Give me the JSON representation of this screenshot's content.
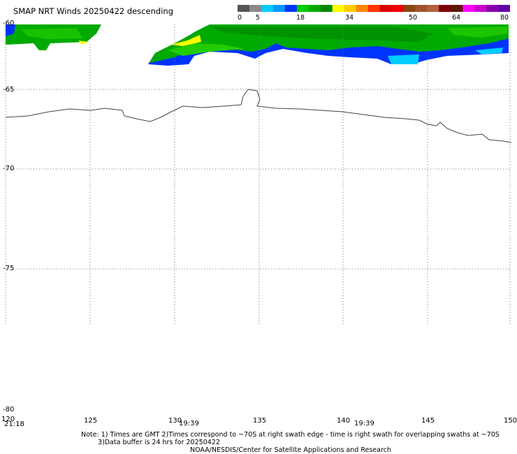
{
  "title": "SMAP NRT Winds  20250422 descending",
  "colorbar": {
    "labels": [
      "0",
      "5",
      "18",
      "34",
      "50",
      "64",
      "80"
    ],
    "segments": [
      "#555555",
      "#8a8a8a",
      "#00ccff",
      "#0099ff",
      "#0033ff",
      "#00cc00",
      "#00aa00",
      "#008800",
      "#ffff00",
      "#ffcc00",
      "#ff8800",
      "#ff3300",
      "#dd0000",
      "#ee0000",
      "#8b4513",
      "#a0522d",
      "#b06040",
      "#800000",
      "#5a1a00",
      "#ff00ff",
      "#cc00cc",
      "#8800aa",
      "#6600aa"
    ]
  },
  "axes": {
    "lat_labels": [
      "-60",
      "-65",
      "-70",
      "-75",
      "-80"
    ],
    "lon_labels": [
      "120",
      "125",
      "130",
      "135",
      "140",
      "145",
      "150"
    ],
    "time_labels": [
      "21:18",
      "19:39",
      "19:39"
    ]
  },
  "notes": {
    "line1": "Note: 1) Times are GMT 2)Times correspond to ~70S at right swath edge - time is right swath for overlapping swaths at ~70S",
    "line2": "3)Data buffer is 24 hrs for 20250422",
    "line3": "NOAA/NESDIS/Center for Satellite Applications and Research"
  }
}
